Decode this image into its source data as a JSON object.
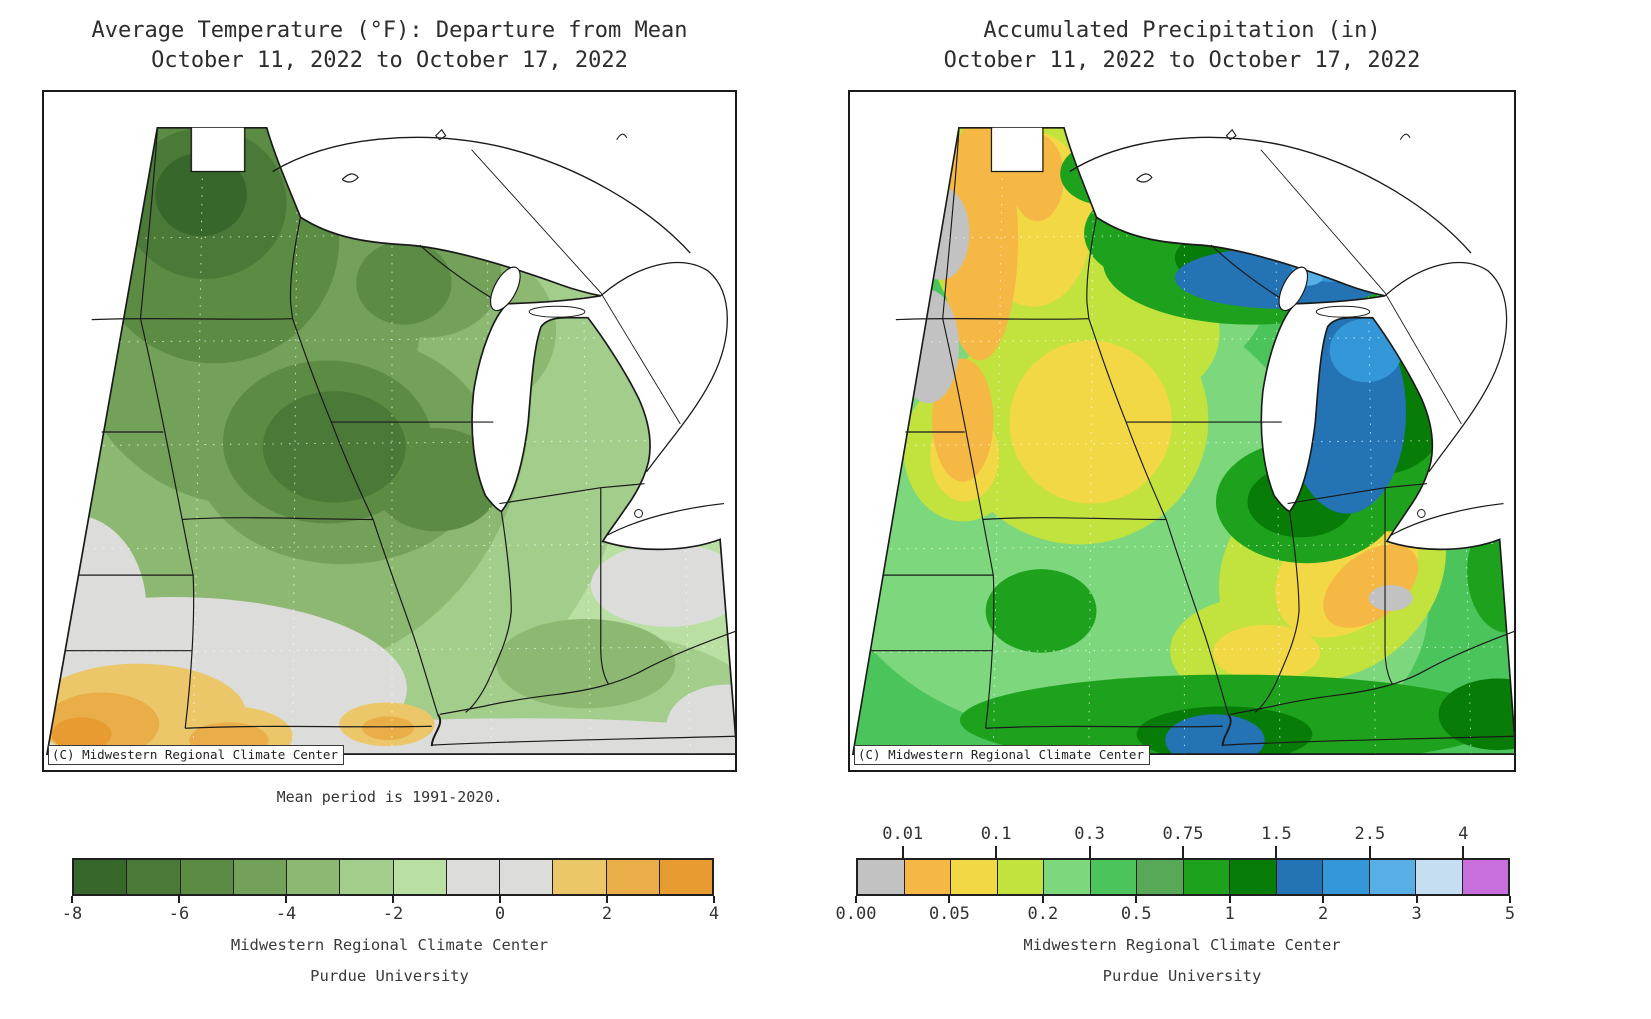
{
  "page": {
    "background": "#ffffff",
    "text_color": "#333333"
  },
  "panels": [
    {
      "key": "temperature",
      "title_line1": "Average Temperature (°F): Departure from Mean",
      "title_line2": "October 11, 2022 to October 17, 2022",
      "copyright_badge": "(C) Midwestern Regional Climate Center",
      "note": "Mean period is 1991-2020.",
      "footer_line1": "Midwestern Regional Climate Center",
      "footer_line2": "Purdue University",
      "legend": {
        "n_cells": 12,
        "cell_colors": [
          "#37672b",
          "#4b7a38",
          "#5c8b44",
          "#74a159",
          "#8cb872",
          "#a3cd8a",
          "#badfa2",
          "#dcdcda",
          "#dcdcda",
          "#ecc76a",
          "#eaae49",
          "#e79b30"
        ],
        "top_labels": [],
        "bottom_labels": [
          {
            "b": 0,
            "t": "-8"
          },
          {
            "b": 2,
            "t": "-6"
          },
          {
            "b": 4,
            "t": "-4"
          },
          {
            "b": 6,
            "t": "-2"
          },
          {
            "b": 8,
            "t": "0"
          },
          {
            "b": 10,
            "t": "2"
          },
          {
            "b": 12,
            "t": "4"
          }
        ]
      }
    },
    {
      "key": "precipitation",
      "title_line1": "Accumulated Precipitation (in)",
      "title_line2": "October 11, 2022 to October 17, 2022",
      "copyright_badge": "(C) Midwestern Regional Climate Center",
      "note": "",
      "footer_line1": "Midwestern Regional Climate Center",
      "footer_line2": "Purdue University",
      "legend": {
        "n_cells": 14,
        "cell_colors": [
          "#c2c2c2",
          "#f6b845",
          "#f2d844",
          "#c2e23e",
          "#7dd87d",
          "#4cc45c",
          "#57a957",
          "#1ea21e",
          "#077d07",
          "#2473b5",
          "#3397d8",
          "#57afe5",
          "#c5def2",
          "#c86fdd"
        ],
        "top_labels": [
          {
            "b": 1,
            "t": "0.01"
          },
          {
            "b": 3,
            "t": "0.1"
          },
          {
            "b": 5,
            "t": "0.3"
          },
          {
            "b": 7,
            "t": "0.75"
          },
          {
            "b": 9,
            "t": "1.5"
          },
          {
            "b": 11,
            "t": "2.5"
          },
          {
            "b": 13,
            "t": "4"
          }
        ],
        "bottom_labels": [
          {
            "b": 0,
            "t": "0.00"
          },
          {
            "b": 2,
            "t": "0.05"
          },
          {
            "b": 4,
            "t": "0.2"
          },
          {
            "b": 6,
            "t": "0.5"
          },
          {
            "b": 8,
            "t": "1"
          },
          {
            "b": 10,
            "t": "2"
          },
          {
            "b": 12,
            "t": "3"
          },
          {
            "b": 14,
            "t": "5"
          }
        ]
      }
    }
  ],
  "chart_data": [
    {
      "type": "map",
      "title": "Average Temperature (°F): Departure from Mean",
      "subtitle": "October 11, 2022 to October 17, 2022",
      "units": "°F departure from mean",
      "note": "Mean period is 1991-2020.",
      "scale_boundaries": [
        -8,
        -7,
        -6,
        -5,
        -4,
        -3,
        -2,
        -1,
        0,
        1,
        2,
        3,
        4
      ],
      "scale_tick_labels": [
        "-8",
        "-6",
        "-4",
        "-2",
        "0",
        "2",
        "4"
      ],
      "bin_colors": [
        "#37672b",
        "#4b7a38",
        "#5c8b44",
        "#74a159",
        "#8cb872",
        "#a3cd8a",
        "#badfa2",
        "#dcdcda",
        "#dcdcda",
        "#ecc76a",
        "#eaae49",
        "#e79b30"
      ],
      "source": "Midwestern Regional Climate Center, Purdue University"
    },
    {
      "type": "map",
      "title": "Accumulated Precipitation (in)",
      "subtitle": "October 11, 2022 to October 17, 2022",
      "units": "inches",
      "scale_boundaries": [
        0.0,
        0.01,
        0.05,
        0.1,
        0.2,
        0.3,
        0.5,
        0.75,
        1,
        1.5,
        2,
        2.5,
        3,
        4,
        5
      ],
      "scale_top_labels": [
        "0.01",
        "0.1",
        "0.3",
        "0.75",
        "1.5",
        "2.5",
        "4"
      ],
      "scale_bottom_labels": [
        "0.00",
        "0.05",
        "0.2",
        "0.5",
        "1",
        "2",
        "3",
        "5"
      ],
      "bin_colors": [
        "#c2c2c2",
        "#f6b845",
        "#f2d844",
        "#c2e23e",
        "#7dd87d",
        "#4cc45c",
        "#57a957",
        "#1ea21e",
        "#077d07",
        "#2473b5",
        "#3397d8",
        "#57afe5",
        "#c5def2",
        "#c86fdd"
      ],
      "source": "Midwestern Regional Climate Center, Purdue University"
    }
  ]
}
